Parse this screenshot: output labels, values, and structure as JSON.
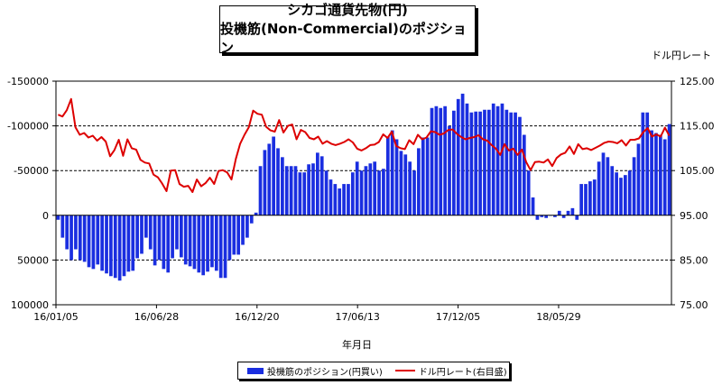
{
  "title": {
    "line1": "シカゴ通貨先物(円)",
    "line2": "投機筋(Non-Commercial)のポジション"
  },
  "right_unit": "ドル円レート",
  "x_axis_title": "年月日",
  "legend": {
    "bar": "投機筋のポジション(円買い)",
    "line": "ドル円レート(右目盛)"
  },
  "colors": {
    "bar": "#1a2ee0",
    "line": "#dd0000",
    "grid": "#000000"
  },
  "chart_data": {
    "type": "bar",
    "title": "シカゴ通貨先物(円) 投機筋(Non-Commercial)のポジション",
    "xlabel": "年月日",
    "ylabel_right": "ドル円レート",
    "x_ticks": [
      "16/01/05",
      "16/06/28",
      "16/12/20",
      "17/06/13",
      "17/12/05",
      "18/05/29"
    ],
    "y_left_ticks": [
      "-150000",
      "-100000",
      "-50000",
      "0",
      "50000",
      "100000"
    ],
    "y_left_range": [
      -150000,
      100000
    ],
    "y_left_inverted": true,
    "y_right_ticks": [
      "125.00",
      "115.00",
      "105.00",
      "95.00",
      "85.00",
      "75.00"
    ],
    "y_right_range": [
      75,
      125
    ],
    "gridlines_left": [
      -100000,
      -50000,
      50000
    ],
    "series": [
      {
        "name": "投機筋のポジション(円買い)",
        "type": "bar",
        "axis": "left",
        "values": [
          5000,
          25000,
          38000,
          50000,
          38000,
          50000,
          52000,
          58000,
          60000,
          55000,
          62000,
          65000,
          68000,
          70000,
          73000,
          68000,
          63000,
          62000,
          48000,
          43000,
          25000,
          38000,
          56000,
          50000,
          60000,
          64000,
          48000,
          38000,
          47000,
          55000,
          57000,
          60000,
          64000,
          67000,
          63000,
          58000,
          62000,
          70000,
          70000,
          50000,
          44000,
          44000,
          33000,
          25000,
          9000,
          -3000,
          -55000,
          -73000,
          -80000,
          -88000,
          -75000,
          -65000,
          -55000,
          -55000,
          -55000,
          -48000,
          -48000,
          -57000,
          -58000,
          -70000,
          -66000,
          -50000,
          -40000,
          -35000,
          -30000,
          -35000,
          -35000,
          -48000,
          -60000,
          -50000,
          -55000,
          -58000,
          -60000,
          -50000,
          -52000,
          -88000,
          -95000,
          -85000,
          -72000,
          -68000,
          -60000,
          -50000,
          -75000,
          -87000,
          -87000,
          -120000,
          -122000,
          -120000,
          -122000,
          -100000,
          -117000,
          -130000,
          -136000,
          -125000,
          -115000,
          -116000,
          -116000,
          -118000,
          -118000,
          -125000,
          -122000,
          -125000,
          -118000,
          -115000,
          -115000,
          -110000,
          -90000,
          -50000,
          -20000,
          5000,
          2000,
          3000,
          0,
          2000,
          -5000,
          3000,
          -5000,
          -8000,
          5000,
          -35000,
          -35000,
          -38000,
          -40000,
          -60000,
          -70000,
          -65000,
          -55000,
          -48000,
          -42000,
          -45000,
          -50000,
          -65000,
          -80000,
          -115000,
          -115000,
          -95000,
          -92000,
          -90000,
          -85000,
          -102000
        ],
        "color": "#1a2ee0"
      },
      {
        "name": "ドル円レート(右目盛)",
        "type": "line",
        "axis": "right",
        "values": [
          117.5,
          117.1,
          118.5,
          121.0,
          114.7,
          113.0,
          113.4,
          112.4,
          112.8,
          111.7,
          112.5,
          111.5,
          108.2,
          109.6,
          111.9,
          108.3,
          112.0,
          110.0,
          109.7,
          107.4,
          106.8,
          106.6,
          104.1,
          103.5,
          102.1,
          100.4,
          105.0,
          105.1,
          102.0,
          101.4,
          101.6,
          100.2,
          103.0,
          101.5,
          102.2,
          103.4,
          102.0,
          104.9,
          105.1,
          104.6,
          103.0,
          107.6,
          111.0,
          113.0,
          114.7,
          118.4,
          117.7,
          117.5,
          114.8,
          114.0,
          113.7,
          116.3,
          113.5,
          115.0,
          115.3,
          112.0,
          114.1,
          113.6,
          112.3,
          112.0,
          112.6,
          111.0,
          111.6,
          111.0,
          110.7,
          111.0,
          111.4,
          112.0,
          111.3,
          109.9,
          109.5,
          110.0,
          110.7,
          110.8,
          111.4,
          113.1,
          112.3,
          113.7,
          110.5,
          110.0,
          109.8,
          111.8,
          110.9,
          113.0,
          112.0,
          112.4,
          113.8,
          113.6,
          113.0,
          113.3,
          114.1,
          114.2,
          113.2,
          112.5,
          112.0,
          112.3,
          112.5,
          112.9,
          112.0,
          111.7,
          110.7,
          109.9,
          108.5,
          110.9,
          109.5,
          109.9,
          108.5,
          109.7,
          106.9,
          105.1,
          106.9,
          107.0,
          106.8,
          107.5,
          106.0,
          107.8,
          108.6,
          109.0,
          110.4,
          108.7,
          110.9,
          109.8,
          110.0,
          109.6,
          110.1,
          110.6,
          111.2,
          111.5,
          111.4,
          111.1,
          111.8,
          110.6,
          111.9,
          111.9,
          112.2,
          113.6,
          114.5,
          112.6,
          113.1,
          112.6,
          114.6,
          112.8
        ],
        "color": "#dd0000"
      }
    ]
  }
}
